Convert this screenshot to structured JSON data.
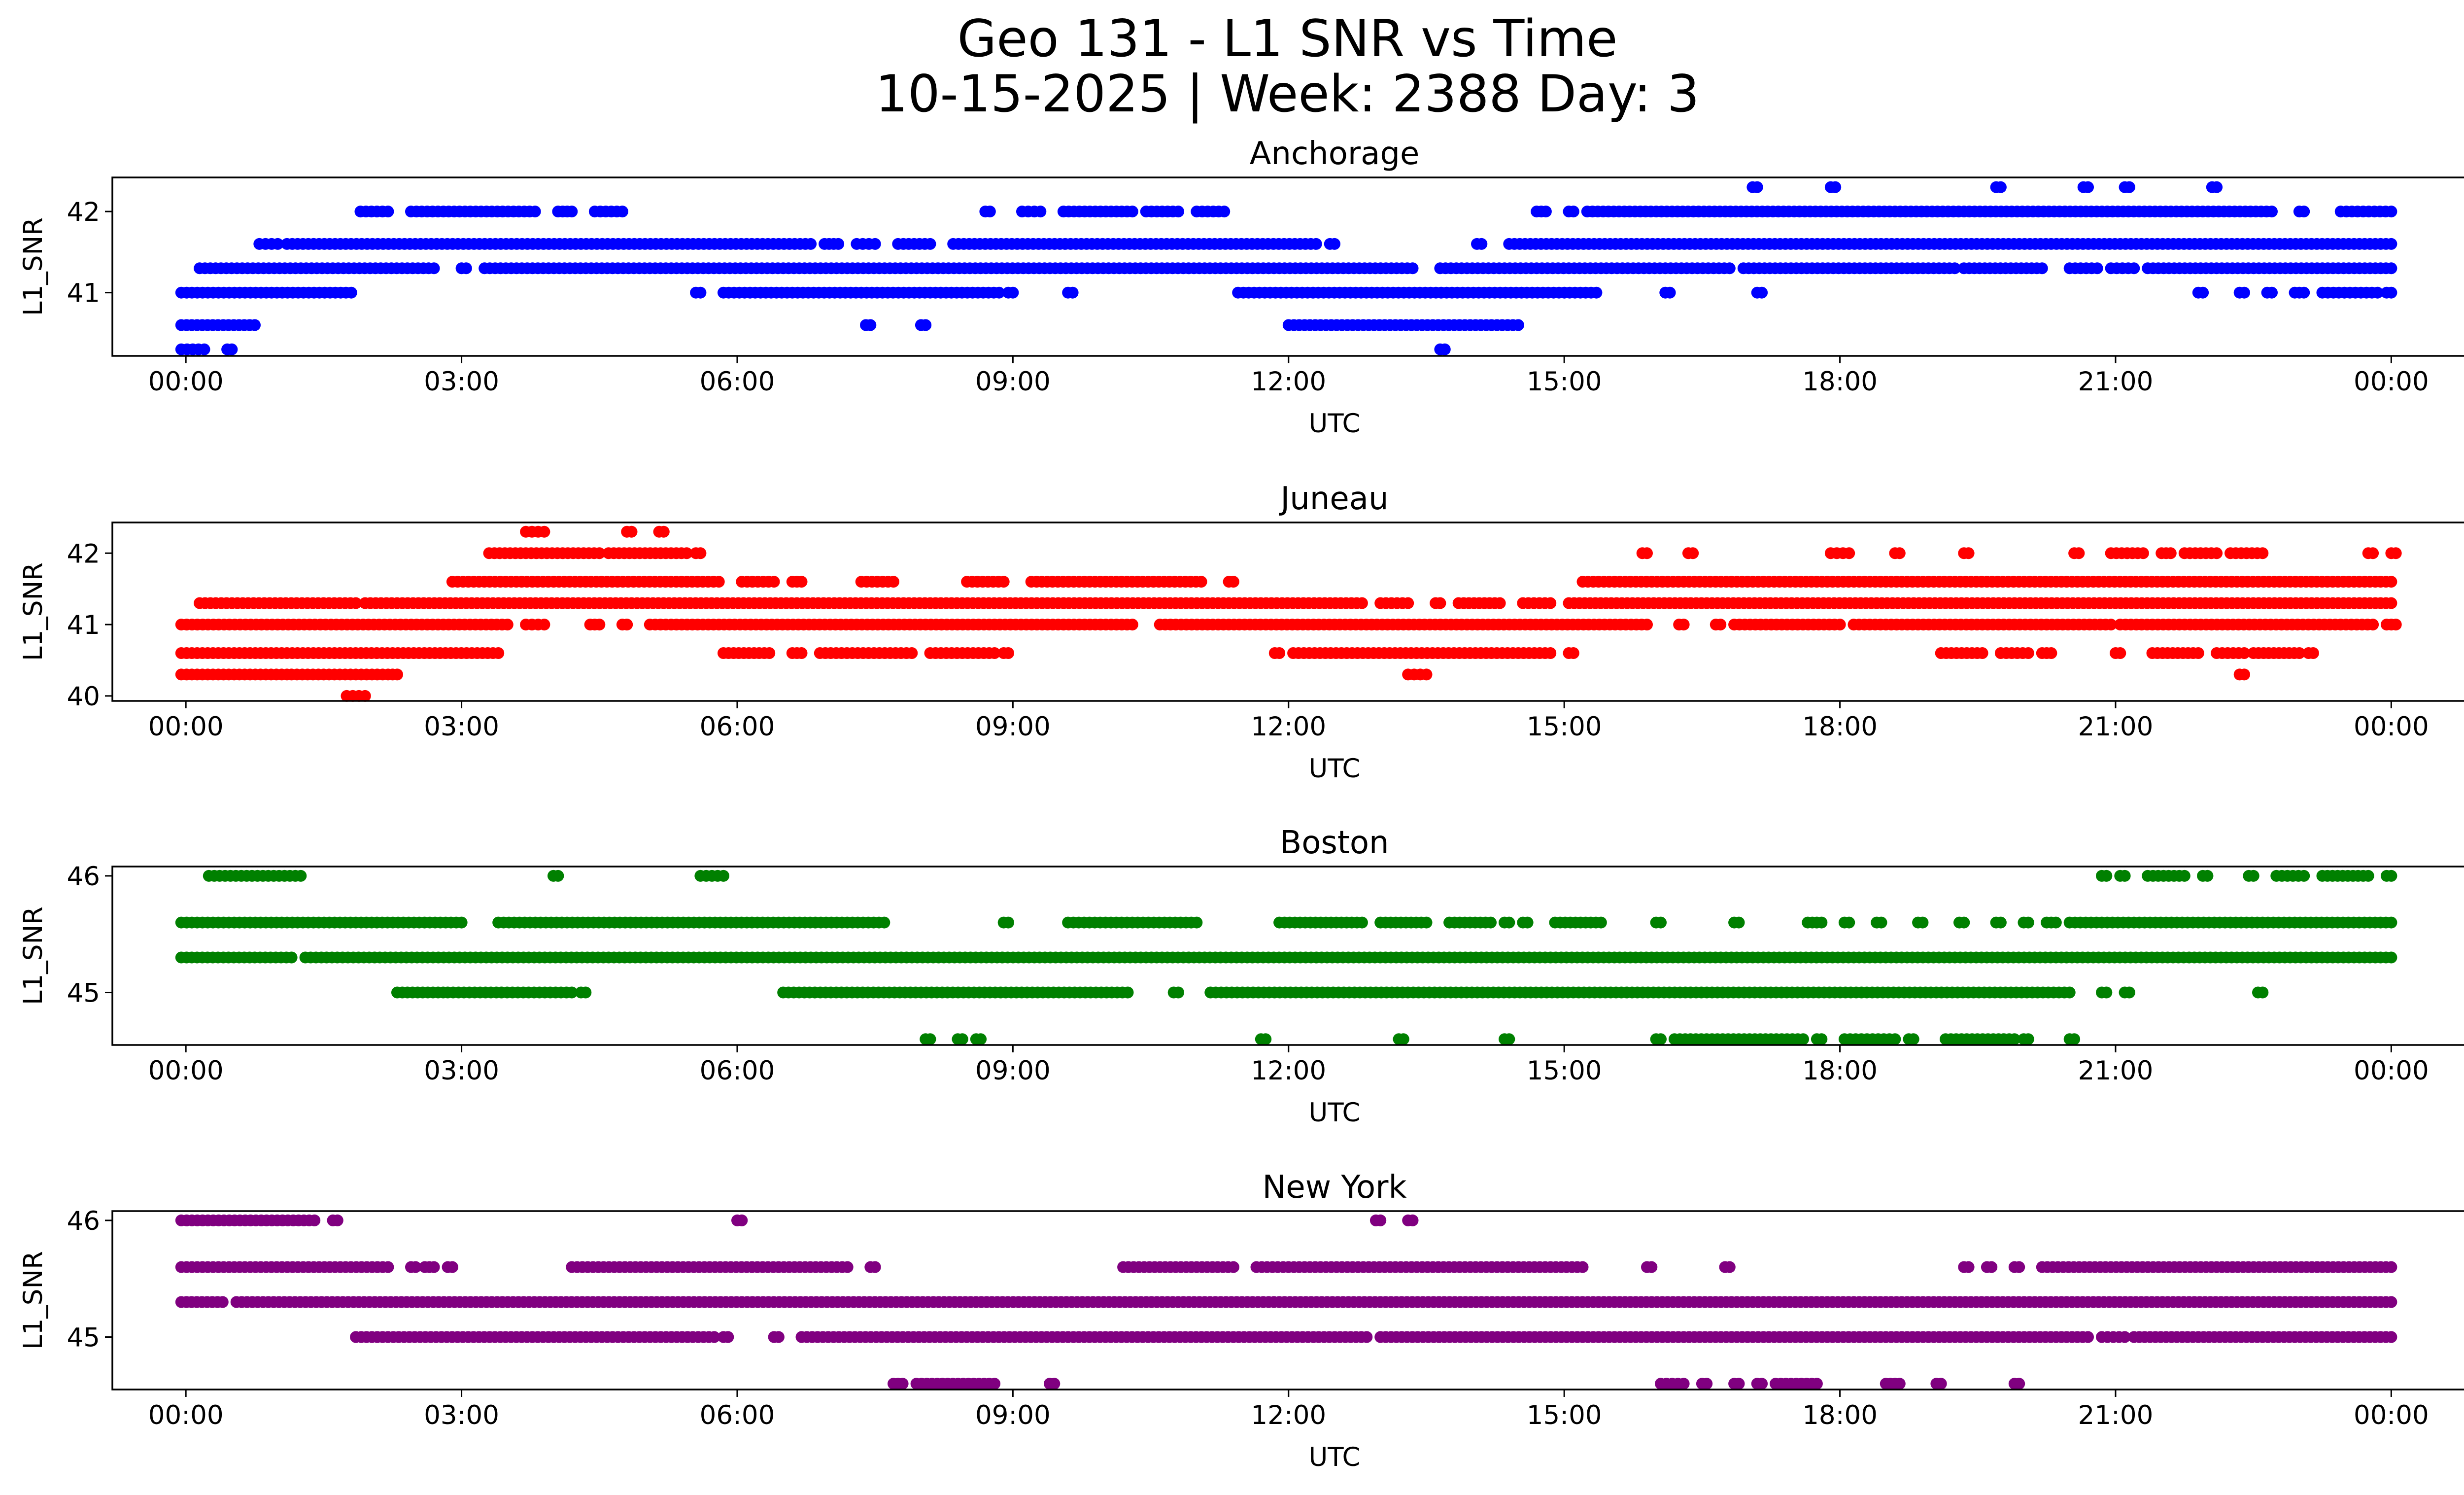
{
  "title_line1": "Geo 131 - L1 SNR vs Time",
  "title_line2": "10-15-2025 | Week: 2388 Day: 3",
  "chart_data": [
    {
      "type": "scatter",
      "title": "Anchorage",
      "xlabel": "UTC",
      "ylabel": "L1_SNR",
      "color": "#0000ff",
      "xlim": [
        -0.8,
        25.8
      ],
      "ylim": [
        40.22,
        42.42
      ],
      "yticks": [
        41,
        42
      ],
      "xticks": [
        0,
        3,
        6,
        9,
        12,
        15,
        18,
        21,
        24
      ],
      "xtick_labels": [
        "00:00",
        "03:00",
        "06:00",
        "09:00",
        "12:00",
        "15:00",
        "18:00",
        "21:00",
        "00:00"
      ],
      "levels": [
        {
          "y": 42.3,
          "ranges": [
            [
              17.05,
              17.1
            ],
            [
              17.9,
              17.95
            ],
            [
              19.7,
              19.75
            ],
            [
              20.65,
              20.7
            ],
            [
              21.1,
              21.15
            ],
            [
              22.05,
              22.1
            ]
          ]
        },
        {
          "y": 42.0,
          "ranges": [
            [
              1.9,
              2.2
            ],
            [
              2.45,
              3.8
            ],
            [
              4.05,
              4.2
            ],
            [
              4.45,
              4.75
            ],
            [
              8.7,
              8.75
            ],
            [
              9.1,
              9.3
            ],
            [
              9.55,
              10.3
            ],
            [
              10.45,
              10.8
            ],
            [
              11.0,
              11.3
            ],
            [
              14.7,
              14.8
            ],
            [
              15.05,
              15.1
            ],
            [
              15.25,
              22.7
            ],
            [
              23.0,
              23.05
            ],
            [
              23.45,
              24.0
            ]
          ]
        },
        {
          "y": 41.6,
          "ranges": [
            [
              0.8,
              1.0
            ],
            [
              1.1,
              6.8
            ],
            [
              6.95,
              7.1
            ],
            [
              7.3,
              7.5
            ],
            [
              7.75,
              8.1
            ],
            [
              8.35,
              12.3
            ],
            [
              12.45,
              12.5
            ],
            [
              14.05,
              14.1
            ],
            [
              14.4,
              24.0
            ]
          ]
        },
        {
          "y": 41.3,
          "ranges": [
            [
              0.15,
              2.7
            ],
            [
              3.0,
              3.05
            ],
            [
              3.25,
              13.35
            ],
            [
              13.65,
              16.8
            ],
            [
              16.95,
              19.25
            ],
            [
              19.35,
              20.2
            ],
            [
              20.5,
              20.8
            ],
            [
              20.95,
              21.2
            ],
            [
              21.35,
              24.0
            ]
          ]
        },
        {
          "y": 41.0,
          "ranges": [
            [
              -0.05,
              1.8
            ],
            [
              5.55,
              5.6
            ],
            [
              5.85,
              8.85
            ],
            [
              8.95,
              9.0
            ],
            [
              9.6,
              9.65
            ],
            [
              11.45,
              15.35
            ],
            [
              16.1,
              16.15
            ],
            [
              17.1,
              17.15
            ],
            [
              21.9,
              21.95
            ],
            [
              22.35,
              22.4
            ],
            [
              22.65,
              22.7
            ],
            [
              22.95,
              23.05
            ],
            [
              23.25,
              23.85
            ],
            [
              23.95,
              24.0
            ]
          ]
        },
        {
          "y": 40.6,
          "ranges": [
            [
              -0.05,
              0.75
            ],
            [
              7.4,
              7.45
            ],
            [
              8.0,
              8.05
            ],
            [
              12.0,
              14.5
            ]
          ]
        },
        {
          "y": 40.3,
          "ranges": [
            [
              -0.05,
              0.2
            ],
            [
              0.45,
              0.5
            ],
            [
              13.65,
              13.7
            ]
          ]
        }
      ]
    },
    {
      "type": "scatter",
      "title": "Juneau",
      "xlabel": "UTC",
      "ylabel": "L1_SNR",
      "color": "#ff0000",
      "xlim": [
        -0.8,
        25.8
      ],
      "ylim": [
        39.93,
        42.43
      ],
      "yticks": [
        40,
        41,
        42
      ],
      "xticks": [
        0,
        3,
        6,
        9,
        12,
        15,
        18,
        21,
        24
      ],
      "xtick_labels": [
        "00:00",
        "03:00",
        "06:00",
        "09:00",
        "12:00",
        "15:00",
        "18:00",
        "21:00",
        "00:00"
      ],
      "levels": [
        {
          "y": 42.3,
          "ranges": [
            [
              3.7,
              3.9
            ],
            [
              4.8,
              4.85
            ],
            [
              5.15,
              5.2
            ]
          ]
        },
        {
          "y": 42.0,
          "ranges": [
            [
              3.3,
              4.5
            ],
            [
              4.6,
              5.45
            ],
            [
              5.55,
              5.6
            ],
            [
              15.85,
              15.9
            ],
            [
              16.35,
              16.4
            ],
            [
              17.9,
              18.1
            ],
            [
              18.6,
              18.65
            ],
            [
              19.35,
              19.4
            ],
            [
              20.55,
              20.6
            ],
            [
              20.95,
              21.3
            ],
            [
              21.5,
              21.6
            ],
            [
              21.75,
              22.1
            ],
            [
              22.25,
              22.6
            ],
            [
              23.75,
              23.8
            ],
            [
              24.0,
              24.05
            ]
          ]
        },
        {
          "y": 41.6,
          "ranges": [
            [
              2.9,
              5.8
            ],
            [
              6.05,
              6.4
            ],
            [
              6.6,
              6.7
            ],
            [
              7.35,
              7.7
            ],
            [
              8.5,
              8.9
            ],
            [
              9.2,
              11.05
            ],
            [
              11.35,
              11.4
            ],
            [
              15.2,
              24.0
            ]
          ]
        },
        {
          "y": 41.3,
          "ranges": [
            [
              0.15,
              1.85
            ],
            [
              1.95,
              12.8
            ],
            [
              13.0,
              13.3
            ],
            [
              13.6,
              13.65
            ],
            [
              13.85,
              14.3
            ],
            [
              14.55,
              14.85
            ],
            [
              15.05,
              24.0
            ]
          ]
        },
        {
          "y": 41.0,
          "ranges": [
            [
              -0.05,
              3.5
            ],
            [
              3.7,
              3.9
            ],
            [
              4.4,
              4.5
            ],
            [
              4.75,
              4.8
            ],
            [
              5.05,
              10.3
            ],
            [
              10.6,
              15.9
            ],
            [
              16.25,
              16.3
            ],
            [
              16.65,
              16.7
            ],
            [
              16.85,
              18.0
            ],
            [
              18.15,
              20.95
            ],
            [
              21.05,
              23.8
            ],
            [
              23.95,
              24.05
            ]
          ]
        },
        {
          "y": 40.6,
          "ranges": [
            [
              -0.05,
              3.4
            ],
            [
              5.85,
              6.35
            ],
            [
              6.6,
              6.7
            ],
            [
              6.9,
              7.9
            ],
            [
              8.1,
              8.8
            ],
            [
              8.9,
              8.95
            ],
            [
              11.85,
              11.9
            ],
            [
              12.05,
              14.85
            ],
            [
              15.05,
              15.1
            ],
            [
              19.1,
              19.55
            ],
            [
              19.75,
              20.05
            ],
            [
              20.2,
              20.3
            ],
            [
              21.0,
              21.05
            ],
            [
              21.4,
              21.9
            ],
            [
              22.1,
              22.4
            ],
            [
              22.5,
              23.0
            ],
            [
              23.1,
              23.15
            ]
          ]
        },
        {
          "y": 40.3,
          "ranges": [
            [
              -0.05,
              1.1
            ],
            [
              1.15,
              2.2
            ],
            [
              2.25,
              2.3
            ],
            [
              13.3,
              13.5
            ],
            [
              22.35,
              22.4
            ]
          ]
        },
        {
          "y": 40.0,
          "ranges": [
            [
              1.75,
              1.95
            ]
          ]
        }
      ]
    },
    {
      "type": "scatter",
      "title": "Boston",
      "xlabel": "UTC",
      "ylabel": "L1_SNR",
      "color": "#008000",
      "xlim": [
        -0.8,
        25.8
      ],
      "ylim": [
        44.55,
        46.08
      ],
      "yticks": [
        45,
        46
      ],
      "xticks": [
        0,
        3,
        6,
        9,
        12,
        15,
        18,
        21,
        24
      ],
      "xtick_labels": [
        "00:00",
        "03:00",
        "06:00",
        "09:00",
        "12:00",
        "15:00",
        "18:00",
        "21:00",
        "00:00"
      ],
      "levels": [
        {
          "y": 46.0,
          "ranges": [
            [
              0.25,
              1.25
            ],
            [
              4.0,
              4.05
            ],
            [
              5.6,
              5.85
            ],
            [
              20.85,
              20.9
            ],
            [
              21.05,
              21.1
            ],
            [
              21.35,
              21.75
            ],
            [
              21.95,
              22.0
            ],
            [
              22.45,
              22.5
            ],
            [
              22.75,
              23.05
            ],
            [
              23.25,
              23.75
            ],
            [
              23.95,
              24.0
            ]
          ]
        },
        {
          "y": 45.6,
          "ranges": [
            [
              -0.05,
              3.0
            ],
            [
              3.4,
              7.6
            ],
            [
              8.9,
              8.95
            ],
            [
              9.6,
              11.0
            ],
            [
              11.9,
              12.8
            ],
            [
              13.0,
              13.5
            ],
            [
              13.75,
              14.2
            ],
            [
              14.35,
              14.4
            ],
            [
              14.55,
              14.6
            ],
            [
              14.9,
              15.4
            ],
            [
              16.0,
              16.05
            ],
            [
              16.85,
              16.9
            ],
            [
              17.65,
              17.8
            ],
            [
              18.05,
              18.1
            ],
            [
              18.4,
              18.45
            ],
            [
              18.85,
              18.9
            ],
            [
              19.3,
              19.35
            ],
            [
              19.7,
              19.75
            ],
            [
              20.0,
              20.05
            ],
            [
              20.25,
              20.35
            ],
            [
              20.5,
              24.0
            ]
          ]
        },
        {
          "y": 45.3,
          "ranges": [
            [
              -0.05,
              1.15
            ],
            [
              1.3,
              24.0
            ]
          ]
        },
        {
          "y": 45.0,
          "ranges": [
            [
              2.3,
              2.8
            ],
            [
              2.85,
              4.2
            ],
            [
              4.3,
              4.35
            ],
            [
              6.5,
              10.25
            ],
            [
              10.75,
              10.8
            ],
            [
              11.15,
              20.5
            ],
            [
              20.85,
              20.9
            ],
            [
              21.1,
              21.15
            ],
            [
              22.55,
              22.6
            ]
          ]
        },
        {
          "y": 44.6,
          "ranges": [
            [
              8.05,
              8.1
            ],
            [
              8.4,
              8.45
            ],
            [
              8.6,
              8.65
            ],
            [
              11.7,
              11.75
            ],
            [
              13.2,
              13.25
            ],
            [
              14.35,
              14.4
            ],
            [
              16.0,
              16.05
            ],
            [
              16.2,
              17.6
            ],
            [
              17.75,
              17.8
            ],
            [
              18.05,
              18.6
            ],
            [
              18.75,
              18.8
            ],
            [
              19.15,
              19.9
            ],
            [
              20.0,
              20.05
            ],
            [
              20.5,
              20.55
            ]
          ]
        }
      ]
    },
    {
      "type": "scatter",
      "title": "New York",
      "xlabel": "UTC",
      "ylabel": "L1_SNR",
      "color": "#800080",
      "xlim": [
        -0.8,
        25.8
      ],
      "ylim": [
        44.55,
        46.08
      ],
      "yticks": [
        45,
        46
      ],
      "xticks": [
        0,
        3,
        6,
        9,
        12,
        15,
        18,
        21,
        24
      ],
      "xtick_labels": [
        "00:00",
        "03:00",
        "06:00",
        "09:00",
        "12:00",
        "15:00",
        "18:00",
        "21:00",
        "00:00"
      ],
      "levels": [
        {
          "y": 46.0,
          "ranges": [
            [
              -0.05,
              1.4
            ],
            [
              1.6,
              1.65
            ],
            [
              6.0,
              6.05
            ],
            [
              12.95,
              13.0
            ],
            [
              13.3,
              13.35
            ]
          ]
        },
        {
          "y": 45.6,
          "ranges": [
            [
              -0.05,
              2.2
            ],
            [
              2.45,
              2.5
            ],
            [
              2.6,
              2.7
            ],
            [
              2.85,
              2.9
            ],
            [
              4.2,
              7.2
            ],
            [
              7.45,
              7.5
            ],
            [
              10.2,
              11.4
            ],
            [
              11.65,
              15.2
            ],
            [
              15.9,
              15.95
            ],
            [
              16.75,
              16.8
            ],
            [
              19.35,
              19.4
            ],
            [
              19.6,
              19.65
            ],
            [
              19.9,
              19.95
            ],
            [
              20.2,
              24.0
            ]
          ]
        },
        {
          "y": 45.3,
          "ranges": [
            [
              -0.05,
              0.4
            ],
            [
              0.55,
              24.0
            ]
          ]
        },
        {
          "y": 45.0,
          "ranges": [
            [
              1.85,
              5.75
            ],
            [
              5.85,
              5.9
            ],
            [
              6.4,
              6.45
            ],
            [
              6.7,
              12.85
            ],
            [
              13.0,
              20.7
            ],
            [
              20.85,
              21.1
            ],
            [
              21.2,
              24.0
            ]
          ]
        },
        {
          "y": 44.6,
          "ranges": [
            [
              7.7,
              7.8
            ],
            [
              7.95,
              8.8
            ],
            [
              9.4,
              9.45
            ],
            [
              16.05,
              16.3
            ],
            [
              16.5,
              16.55
            ],
            [
              16.85,
              16.9
            ],
            [
              17.1,
              17.15
            ],
            [
              17.3,
              17.75
            ],
            [
              18.5,
              18.65
            ],
            [
              19.05,
              19.1
            ],
            [
              19.9,
              19.95
            ]
          ]
        }
      ]
    }
  ]
}
